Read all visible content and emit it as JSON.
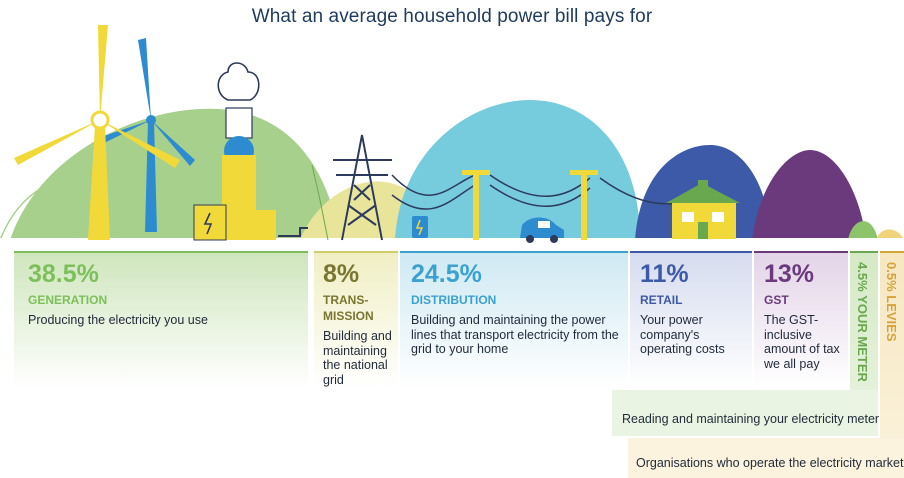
{
  "title": "What an average household power bill pays for",
  "colors": {
    "generation": "#7dbf5a",
    "transmission": "#7a7630",
    "distribution": "#3ba1cf",
    "retail": "#3d5aa8",
    "gst": "#6b3a7d",
    "meter": "#6aa84f",
    "levies": "#d8a23a",
    "turbine": "#f2d93a",
    "text": "#1f2a3a"
  },
  "segments": [
    {
      "percent": "38.5%",
      "category": "GENERATION",
      "description": "Producing the electricity you use"
    },
    {
      "percent": "8%",
      "category_line1": "TRANS-",
      "category_line2": "MISSION",
      "description": "Building and maintaining the national grid"
    },
    {
      "percent": "24.5%",
      "category": "DISTRIBUTION",
      "description": "Building and maintaining the power lines that transport electricity from the grid to your home"
    },
    {
      "percent": "11%",
      "category": "RETAIL",
      "description": "Your power company's operating costs"
    },
    {
      "percent": "13%",
      "category": "GST",
      "description": "The GST-inclusive amount of tax we all pay"
    },
    {
      "percent": "4.5%",
      "category": "YOUR METER",
      "description": "Reading and maintaining your electricity meter"
    },
    {
      "percent": "0.5%",
      "category": "LEVIES",
      "description": "Organisations who operate the electricity market"
    }
  ]
}
